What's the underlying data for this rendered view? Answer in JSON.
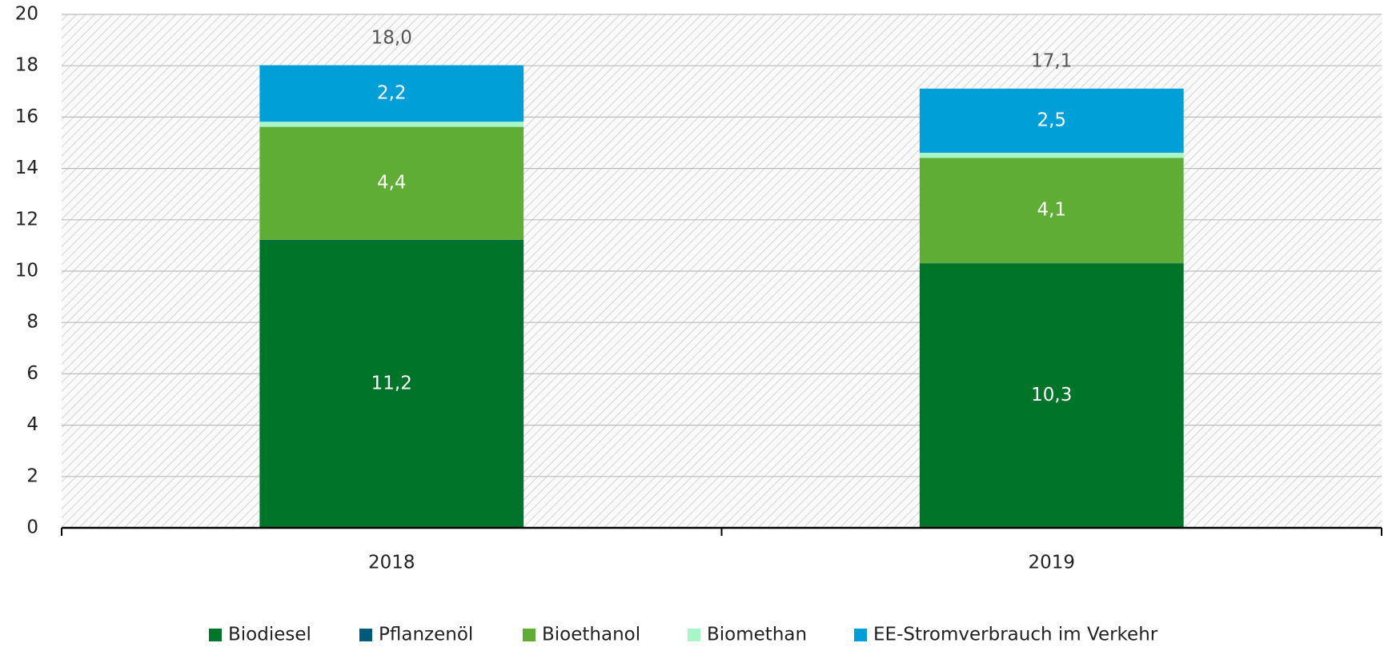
{
  "chart_data": {
    "type": "stacked_bar",
    "categories": [
      "2018",
      "2019"
    ],
    "series": [
      {
        "name": "Biodiesel",
        "color": "#00752a",
        "values": [
          11.2,
          10.3
        ],
        "value_labels": [
          "11,2",
          "10,3"
        ]
      },
      {
        "name": "Pflanzenöl",
        "color": "#005a7a",
        "values": [
          0.02,
          0.01
        ],
        "value_labels": [
          null,
          null
        ]
      },
      {
        "name": "Bioethanol",
        "color": "#5fad35",
        "values": [
          4.4,
          4.1
        ],
        "value_labels": [
          "4,4",
          "4,1"
        ]
      },
      {
        "name": "Biomethan",
        "color": "#a8f5c8",
        "values": [
          0.2,
          0.2
        ],
        "value_labels": [
          null,
          null
        ]
      },
      {
        "name": "EE-Stromverbrauch im Verkehr",
        "color": "#009fd8",
        "values": [
          2.2,
          2.5
        ],
        "value_labels": [
          "2,2",
          "2,5"
        ]
      }
    ],
    "totals": [
      18.0,
      17.1
    ],
    "total_labels": [
      "18,0",
      "17,1"
    ],
    "ylim": [
      0,
      20
    ],
    "yticks": [
      0,
      2,
      4,
      6,
      8,
      10,
      12,
      14,
      16,
      18,
      20
    ],
    "grid": true,
    "legend": "bottom"
  }
}
